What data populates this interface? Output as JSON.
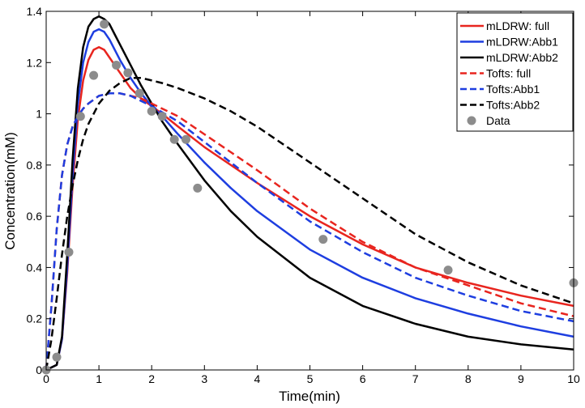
{
  "chart_data": {
    "type": "line",
    "title": "",
    "xlabel": "Time(min)",
    "ylabel": "Concentration(mM)",
    "xlim": [
      0,
      10
    ],
    "ylim": [
      0,
      1.4
    ],
    "xticks": [
      0,
      1,
      2,
      3,
      4,
      5,
      6,
      7,
      8,
      9,
      10
    ],
    "yticks": [
      0,
      0.2,
      0.4,
      0.6,
      0.8,
      1,
      1.2,
      1.4
    ],
    "ytick_labels": [
      "0",
      "0.2",
      "0.4",
      "0.6",
      "0.8",
      "1",
      "1.2",
      "1.4"
    ],
    "grid": false,
    "legend_position": "top-right",
    "series": [
      {
        "name": "mLDRW: full",
        "style": "solid",
        "color": "#e8251f",
        "x": [
          0,
          0.2,
          0.3,
          0.4,
          0.5,
          0.6,
          0.7,
          0.8,
          0.9,
          1.0,
          1.1,
          1.2,
          1.4,
          1.6,
          1.8,
          2.0,
          2.2,
          2.5,
          3,
          3.5,
          4,
          5,
          6,
          7,
          8,
          9,
          10
        ],
        "y": [
          0,
          0.02,
          0.12,
          0.38,
          0.72,
          0.98,
          1.13,
          1.21,
          1.25,
          1.26,
          1.25,
          1.22,
          1.16,
          1.1,
          1.06,
          1.03,
          1.0,
          0.95,
          0.87,
          0.8,
          0.73,
          0.6,
          0.49,
          0.4,
          0.34,
          0.29,
          0.25
        ]
      },
      {
        "name": "mLDRW:Abb1",
        "style": "solid",
        "color": "#1e3ee0",
        "x": [
          0,
          0.2,
          0.3,
          0.4,
          0.5,
          0.6,
          0.7,
          0.8,
          0.9,
          1.0,
          1.1,
          1.2,
          1.4,
          1.6,
          1.8,
          2.0,
          2.2,
          2.5,
          3,
          3.5,
          4,
          5,
          6,
          7,
          8,
          9,
          10
        ],
        "y": [
          0,
          0.02,
          0.12,
          0.4,
          0.76,
          1.04,
          1.2,
          1.28,
          1.32,
          1.33,
          1.32,
          1.29,
          1.21,
          1.14,
          1.08,
          1.03,
          0.99,
          0.92,
          0.81,
          0.71,
          0.62,
          0.47,
          0.36,
          0.28,
          0.22,
          0.17,
          0.13
        ]
      },
      {
        "name": "mLDRW:Abb2",
        "style": "solid",
        "color": "#000000",
        "x": [
          0,
          0.2,
          0.3,
          0.4,
          0.5,
          0.6,
          0.7,
          0.8,
          0.9,
          1.0,
          1.1,
          1.2,
          1.3,
          1.4,
          1.6,
          1.8,
          2.0,
          2.2,
          2.5,
          3,
          3.5,
          4,
          5,
          6,
          7,
          8,
          9,
          10
        ],
        "y": [
          0,
          0.02,
          0.13,
          0.45,
          0.82,
          1.1,
          1.26,
          1.34,
          1.37,
          1.38,
          1.37,
          1.35,
          1.31,
          1.27,
          1.19,
          1.11,
          1.04,
          0.97,
          0.88,
          0.74,
          0.62,
          0.52,
          0.36,
          0.25,
          0.18,
          0.13,
          0.1,
          0.08
        ]
      },
      {
        "name": "Tofts: full",
        "style": "dashed",
        "color": "#e8251f",
        "x": [
          0,
          0.1,
          0.2,
          0.3,
          0.4,
          0.5,
          0.6,
          0.7,
          0.8,
          1.0,
          1.2,
          1.4,
          1.6,
          1.8,
          2.0,
          2.5,
          3,
          3.5,
          4,
          5,
          6,
          7,
          8,
          9,
          10
        ],
        "y": [
          0,
          0.25,
          0.55,
          0.76,
          0.88,
          0.95,
          0.99,
          1.02,
          1.04,
          1.07,
          1.08,
          1.08,
          1.07,
          1.06,
          1.04,
          0.99,
          0.92,
          0.85,
          0.78,
          0.63,
          0.5,
          0.4,
          0.33,
          0.26,
          0.21
        ]
      },
      {
        "name": "Tofts:Abb1",
        "style": "dashed",
        "color": "#1e3ee0",
        "x": [
          0,
          0.1,
          0.2,
          0.3,
          0.4,
          0.5,
          0.6,
          0.7,
          0.8,
          1.0,
          1.2,
          1.4,
          1.6,
          1.8,
          2.0,
          2.5,
          3,
          3.5,
          4,
          5,
          6,
          7,
          8,
          9,
          10
        ],
        "y": [
          0,
          0.25,
          0.55,
          0.76,
          0.88,
          0.95,
          0.99,
          1.02,
          1.04,
          1.07,
          1.08,
          1.08,
          1.07,
          1.05,
          1.03,
          0.97,
          0.89,
          0.81,
          0.73,
          0.58,
          0.46,
          0.36,
          0.29,
          0.23,
          0.19
        ]
      },
      {
        "name": "Tofts:Abb2",
        "style": "dashed",
        "color": "#000000",
        "x": [
          0,
          0.1,
          0.2,
          0.3,
          0.4,
          0.5,
          0.6,
          0.7,
          0.8,
          1.0,
          1.2,
          1.4,
          1.6,
          1.8,
          2.0,
          2.2,
          2.5,
          3,
          3.5,
          4,
          5,
          6,
          7,
          8,
          9,
          10
        ],
        "y": [
          0,
          0.12,
          0.28,
          0.45,
          0.6,
          0.72,
          0.82,
          0.9,
          0.96,
          1.04,
          1.09,
          1.12,
          1.14,
          1.14,
          1.13,
          1.12,
          1.1,
          1.06,
          1.01,
          0.95,
          0.81,
          0.67,
          0.53,
          0.42,
          0.33,
          0.26
        ]
      }
    ],
    "scatter": {
      "name": "Data",
      "color": "#8c8c8c",
      "x": [
        0.0,
        0.2,
        0.43,
        0.65,
        0.9,
        1.1,
        1.33,
        1.55,
        1.77,
        2.0,
        2.2,
        2.43,
        2.65,
        2.87,
        5.25,
        7.62,
        10.0
      ],
      "y": [
        0.0,
        0.05,
        0.46,
        0.99,
        1.15,
        1.35,
        1.19,
        1.16,
        1.08,
        1.01,
        0.99,
        0.9,
        0.9,
        0.71,
        0.51,
        0.39,
        0.34
      ]
    }
  }
}
